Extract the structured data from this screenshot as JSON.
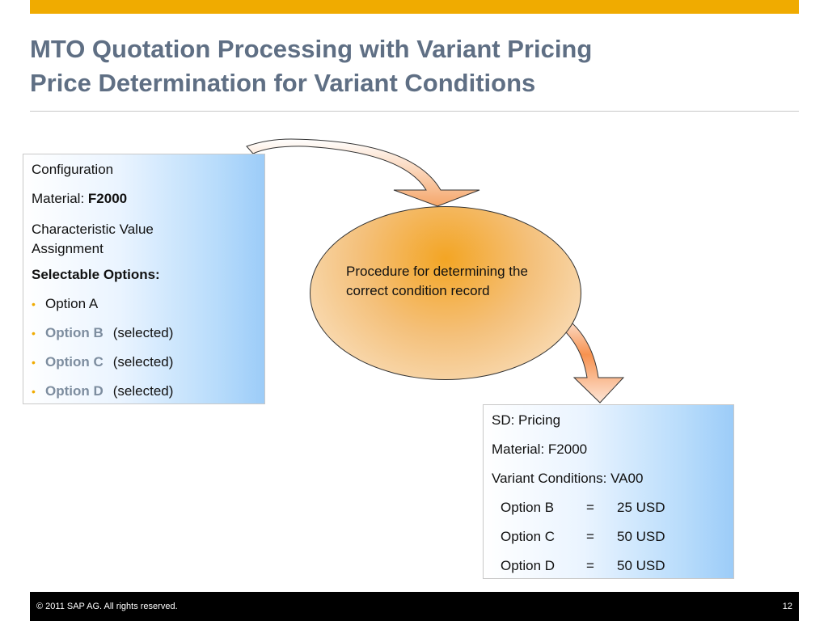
{
  "slide": {
    "title_line1": "MTO Quotation Processing with Variant Pricing",
    "title_line2": "Price Determination for Variant Conditions"
  },
  "config_box": {
    "heading": "Configuration",
    "material_label": "Material: ",
    "material_value": "F2000",
    "char_line1": "Characteristic Value",
    "char_line2": "Assignment",
    "selectable_heading": "Selectable Options:",
    "options": [
      {
        "name": "Option A",
        "selected_text": ""
      },
      {
        "name": "Option B",
        "selected_text": "(selected)"
      },
      {
        "name": "Option C",
        "selected_text": "(selected)"
      },
      {
        "name": "Option D",
        "selected_text": "(selected)"
      }
    ]
  },
  "procedure": {
    "line1": "Procedure for determining the",
    "line2": "correct condition record"
  },
  "pricing_box": {
    "heading": "SD: Pricing",
    "material": "Material: F2000",
    "variant_conditions": "Variant Conditions: VA00",
    "conditions": [
      {
        "option": "Option B",
        "eq": "=",
        "value": "25 USD"
      },
      {
        "option": "Option C",
        "eq": "=",
        "value": "50 USD"
      },
      {
        "option": "Option D",
        "eq": "=",
        "value": "50 USD"
      }
    ]
  },
  "footer": {
    "copyright": "©  2011 SAP AG. All rights reserved.",
    "page_number": "12"
  },
  "colors": {
    "accent": "#f0ab00",
    "title": "#5f6f84",
    "option_highlight": "#7d8d9f"
  }
}
